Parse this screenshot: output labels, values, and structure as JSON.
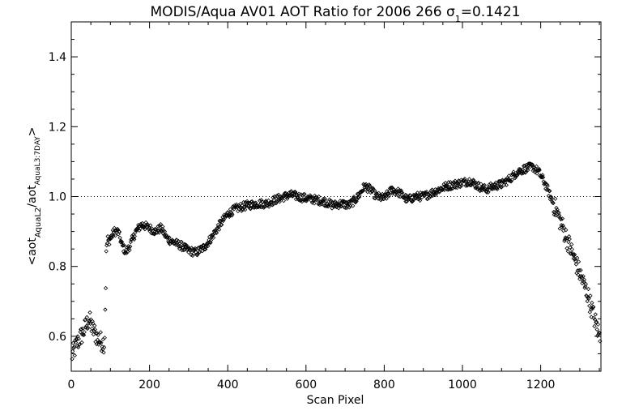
{
  "chart_data": {
    "type": "scatter",
    "title": "MODIS/Aqua AV01 AOT Ratio for 2006 266 σ₁=0.1421",
    "title_parts": {
      "main": "MODIS/Aqua AV01 AOT Ratio for 2006 266 σ",
      "sub": "1",
      "tail": "=0.1421"
    },
    "xlabel": "Scan Pixel",
    "ylabel_parts": {
      "a": "<aot",
      "sub1": "AquaL2",
      "b": "/aot",
      "sub2": "AquaL3:7DAY",
      "c": ">"
    },
    "xlim": [
      0,
      1354
    ],
    "ylim": [
      0.5,
      1.5
    ],
    "x_ticks": [
      0,
      200,
      400,
      600,
      800,
      1000,
      1200
    ],
    "x_tick_labels": [
      "0",
      "200",
      "400",
      "600",
      "800",
      "1000",
      "1200"
    ],
    "y_ticks": [
      0.6,
      0.8,
      1.0,
      1.2,
      1.4
    ],
    "y_tick_labels": [
      "0.6",
      "0.8",
      "1.0",
      "1.2",
      "1.4"
    ],
    "reference_line": {
      "y": 1.0,
      "style": "dotted"
    },
    "grid": false,
    "marker": "diamond",
    "color": "#000000",
    "trend": [
      [
        0,
        0.54
      ],
      [
        15,
        0.58
      ],
      [
        30,
        0.61
      ],
      [
        45,
        0.65
      ],
      [
        55,
        0.62
      ],
      [
        70,
        0.59
      ],
      [
        85,
        0.58
      ],
      [
        90,
        0.86
      ],
      [
        100,
        0.88
      ],
      [
        110,
        0.9
      ],
      [
        120,
        0.9
      ],
      [
        130,
        0.86
      ],
      [
        140,
        0.84
      ],
      [
        150,
        0.86
      ],
      [
        165,
        0.9
      ],
      [
        180,
        0.92
      ],
      [
        200,
        0.91
      ],
      [
        215,
        0.9
      ],
      [
        230,
        0.91
      ],
      [
        245,
        0.88
      ],
      [
        260,
        0.87
      ],
      [
        280,
        0.86
      ],
      [
        300,
        0.845
      ],
      [
        320,
        0.84
      ],
      [
        340,
        0.855
      ],
      [
        360,
        0.885
      ],
      [
        380,
        0.92
      ],
      [
        400,
        0.95
      ],
      [
        420,
        0.965
      ],
      [
        450,
        0.975
      ],
      [
        480,
        0.98
      ],
      [
        500,
        0.98
      ],
      [
        520,
        0.99
      ],
      [
        545,
        1.0
      ],
      [
        560,
        1.005
      ],
      [
        580,
        1.0
      ],
      [
        600,
        0.995
      ],
      [
        630,
        0.99
      ],
      [
        650,
        0.985
      ],
      [
        670,
        0.975
      ],
      [
        690,
        0.98
      ],
      [
        710,
        0.975
      ],
      [
        730,
        0.995
      ],
      [
        750,
        1.03
      ],
      [
        765,
        1.02
      ],
      [
        780,
        1.0
      ],
      [
        800,
        0.995
      ],
      [
        820,
        1.02
      ],
      [
        840,
        1.01
      ],
      [
        860,
        0.99
      ],
      [
        880,
        1.0
      ],
      [
        900,
        1.0
      ],
      [
        920,
        1.01
      ],
      [
        940,
        1.02
      ],
      [
        960,
        1.03
      ],
      [
        980,
        1.035
      ],
      [
        1000,
        1.04
      ],
      [
        1020,
        1.045
      ],
      [
        1040,
        1.03
      ],
      [
        1060,
        1.02
      ],
      [
        1080,
        1.03
      ],
      [
        1100,
        1.035
      ],
      [
        1120,
        1.05
      ],
      [
        1140,
        1.07
      ],
      [
        1160,
        1.08
      ],
      [
        1180,
        1.085
      ],
      [
        1195,
        1.07
      ],
      [
        1210,
        1.04
      ],
      [
        1225,
        1.0
      ],
      [
        1240,
        0.96
      ],
      [
        1260,
        0.9
      ],
      [
        1280,
        0.84
      ],
      [
        1300,
        0.78
      ],
      [
        1320,
        0.72
      ],
      [
        1335,
        0.66
      ],
      [
        1350,
        0.6
      ]
    ]
  }
}
